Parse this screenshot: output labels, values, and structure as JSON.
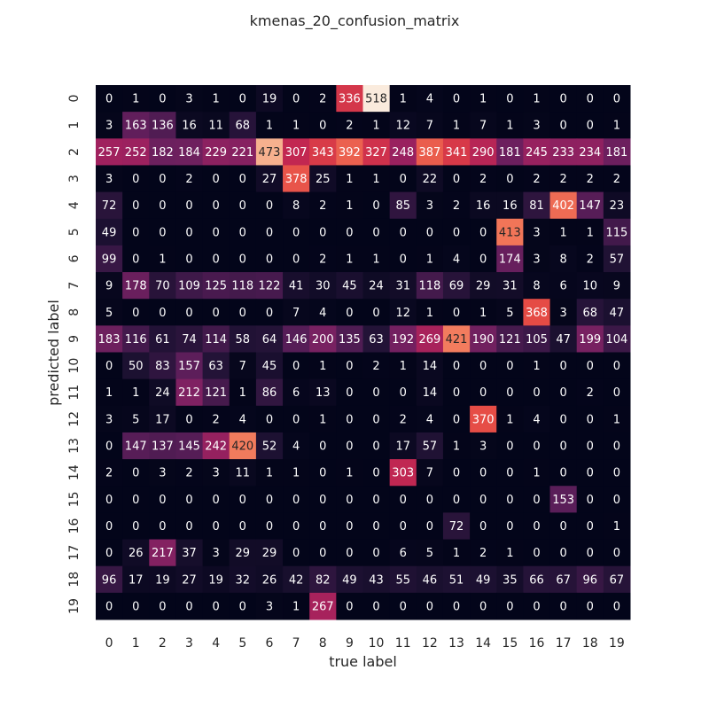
{
  "chart_data": {
    "type": "heatmap",
    "title": "kmenas_20_confusion_matrix",
    "xlabel": "true label",
    "ylabel": "predicted label",
    "x_ticks": [
      "0",
      "1",
      "2",
      "3",
      "4",
      "5",
      "6",
      "7",
      "8",
      "9",
      "10",
      "11",
      "12",
      "13",
      "14",
      "15",
      "16",
      "17",
      "18",
      "19"
    ],
    "y_ticks": [
      "0",
      "1",
      "2",
      "3",
      "4",
      "5",
      "6",
      "7",
      "8",
      "9",
      "10",
      "11",
      "12",
      "13",
      "14",
      "15",
      "16",
      "17",
      "18",
      "19"
    ],
    "colormap": "rocket",
    "colorbar": false,
    "annotated": true,
    "matrix": [
      [
        0,
        1,
        0,
        3,
        1,
        0,
        19,
        0,
        2,
        336,
        518,
        1,
        4,
        0,
        1,
        0,
        1,
        0,
        0,
        0
      ],
      [
        3,
        163,
        136,
        16,
        11,
        68,
        1,
        1,
        0,
        2,
        1,
        12,
        7,
        1,
        7,
        1,
        3,
        0,
        0,
        1
      ],
      [
        257,
        252,
        182,
        184,
        229,
        221,
        473,
        307,
        343,
        392,
        327,
        248,
        387,
        341,
        290,
        181,
        245,
        233,
        234,
        181
      ],
      [
        3,
        0,
        0,
        2,
        0,
        0,
        27,
        378,
        25,
        1,
        1,
        0,
        22,
        0,
        2,
        0,
        2,
        2,
        2,
        2
      ],
      [
        72,
        0,
        0,
        0,
        0,
        0,
        0,
        8,
        2,
        1,
        0,
        85,
        3,
        2,
        16,
        16,
        81,
        402,
        147,
        23
      ],
      [
        49,
        0,
        0,
        0,
        0,
        0,
        0,
        0,
        0,
        0,
        0,
        0,
        0,
        0,
        0,
        413,
        3,
        1,
        1,
        115
      ],
      [
        99,
        0,
        1,
        0,
        0,
        0,
        0,
        0,
        2,
        1,
        1,
        0,
        1,
        4,
        0,
        174,
        3,
        8,
        2,
        57
      ],
      [
        9,
        178,
        70,
        109,
        125,
        118,
        122,
        41,
        30,
        45,
        24,
        31,
        118,
        69,
        29,
        31,
        8,
        6,
        10,
        9
      ],
      [
        5,
        0,
        0,
        0,
        0,
        0,
        0,
        7,
        4,
        0,
        0,
        12,
        1,
        0,
        1,
        5,
        368,
        3,
        68,
        47
      ],
      [
        183,
        116,
        61,
        74,
        114,
        58,
        64,
        146,
        200,
        135,
        63,
        192,
        269,
        421,
        190,
        121,
        105,
        47,
        199,
        104
      ],
      [
        0,
        50,
        83,
        157,
        63,
        7,
        45,
        0,
        1,
        0,
        2,
        1,
        14,
        0,
        0,
        0,
        1,
        0,
        0,
        0
      ],
      [
        1,
        1,
        24,
        212,
        121,
        1,
        86,
        6,
        13,
        0,
        0,
        0,
        14,
        0,
        0,
        0,
        0,
        0,
        2,
        0
      ],
      [
        3,
        5,
        17,
        0,
        2,
        4,
        0,
        0,
        1,
        0,
        0,
        2,
        4,
        0,
        370,
        1,
        4,
        0,
        0,
        1
      ],
      [
        0,
        147,
        137,
        145,
        242,
        420,
        52,
        4,
        0,
        0,
        0,
        17,
        57,
        1,
        3,
        0,
        0,
        0,
        0,
        0
      ],
      [
        2,
        0,
        3,
        2,
        3,
        11,
        1,
        1,
        0,
        1,
        0,
        303,
        7,
        0,
        0,
        0,
        1,
        0,
        0,
        0
      ],
      [
        0,
        0,
        0,
        0,
        0,
        0,
        0,
        0,
        0,
        0,
        0,
        0,
        0,
        0,
        0,
        0,
        0,
        153,
        0,
        0
      ],
      [
        0,
        0,
        0,
        0,
        0,
        0,
        0,
        0,
        0,
        0,
        0,
        0,
        0,
        72,
        0,
        0,
        0,
        0,
        0,
        1
      ],
      [
        0,
        26,
        217,
        37,
        3,
        29,
        29,
        0,
        0,
        0,
        0,
        6,
        5,
        1,
        2,
        1,
        0,
        0,
        0,
        0
      ],
      [
        96,
        17,
        19,
        27,
        19,
        32,
        26,
        42,
        82,
        49,
        43,
        55,
        46,
        51,
        49,
        35,
        66,
        67,
        96,
        67
      ],
      [
        0,
        0,
        0,
        0,
        0,
        0,
        3,
        1,
        267,
        0,
        0,
        0,
        0,
        0,
        0,
        0,
        0,
        0,
        0,
        0
      ]
    ],
    "vmin": 0,
    "vmax": 518,
    "colors": {
      "text_on_dark": "#ffffff",
      "text_on_light": "#262626",
      "axis_text": "#262626"
    }
  }
}
